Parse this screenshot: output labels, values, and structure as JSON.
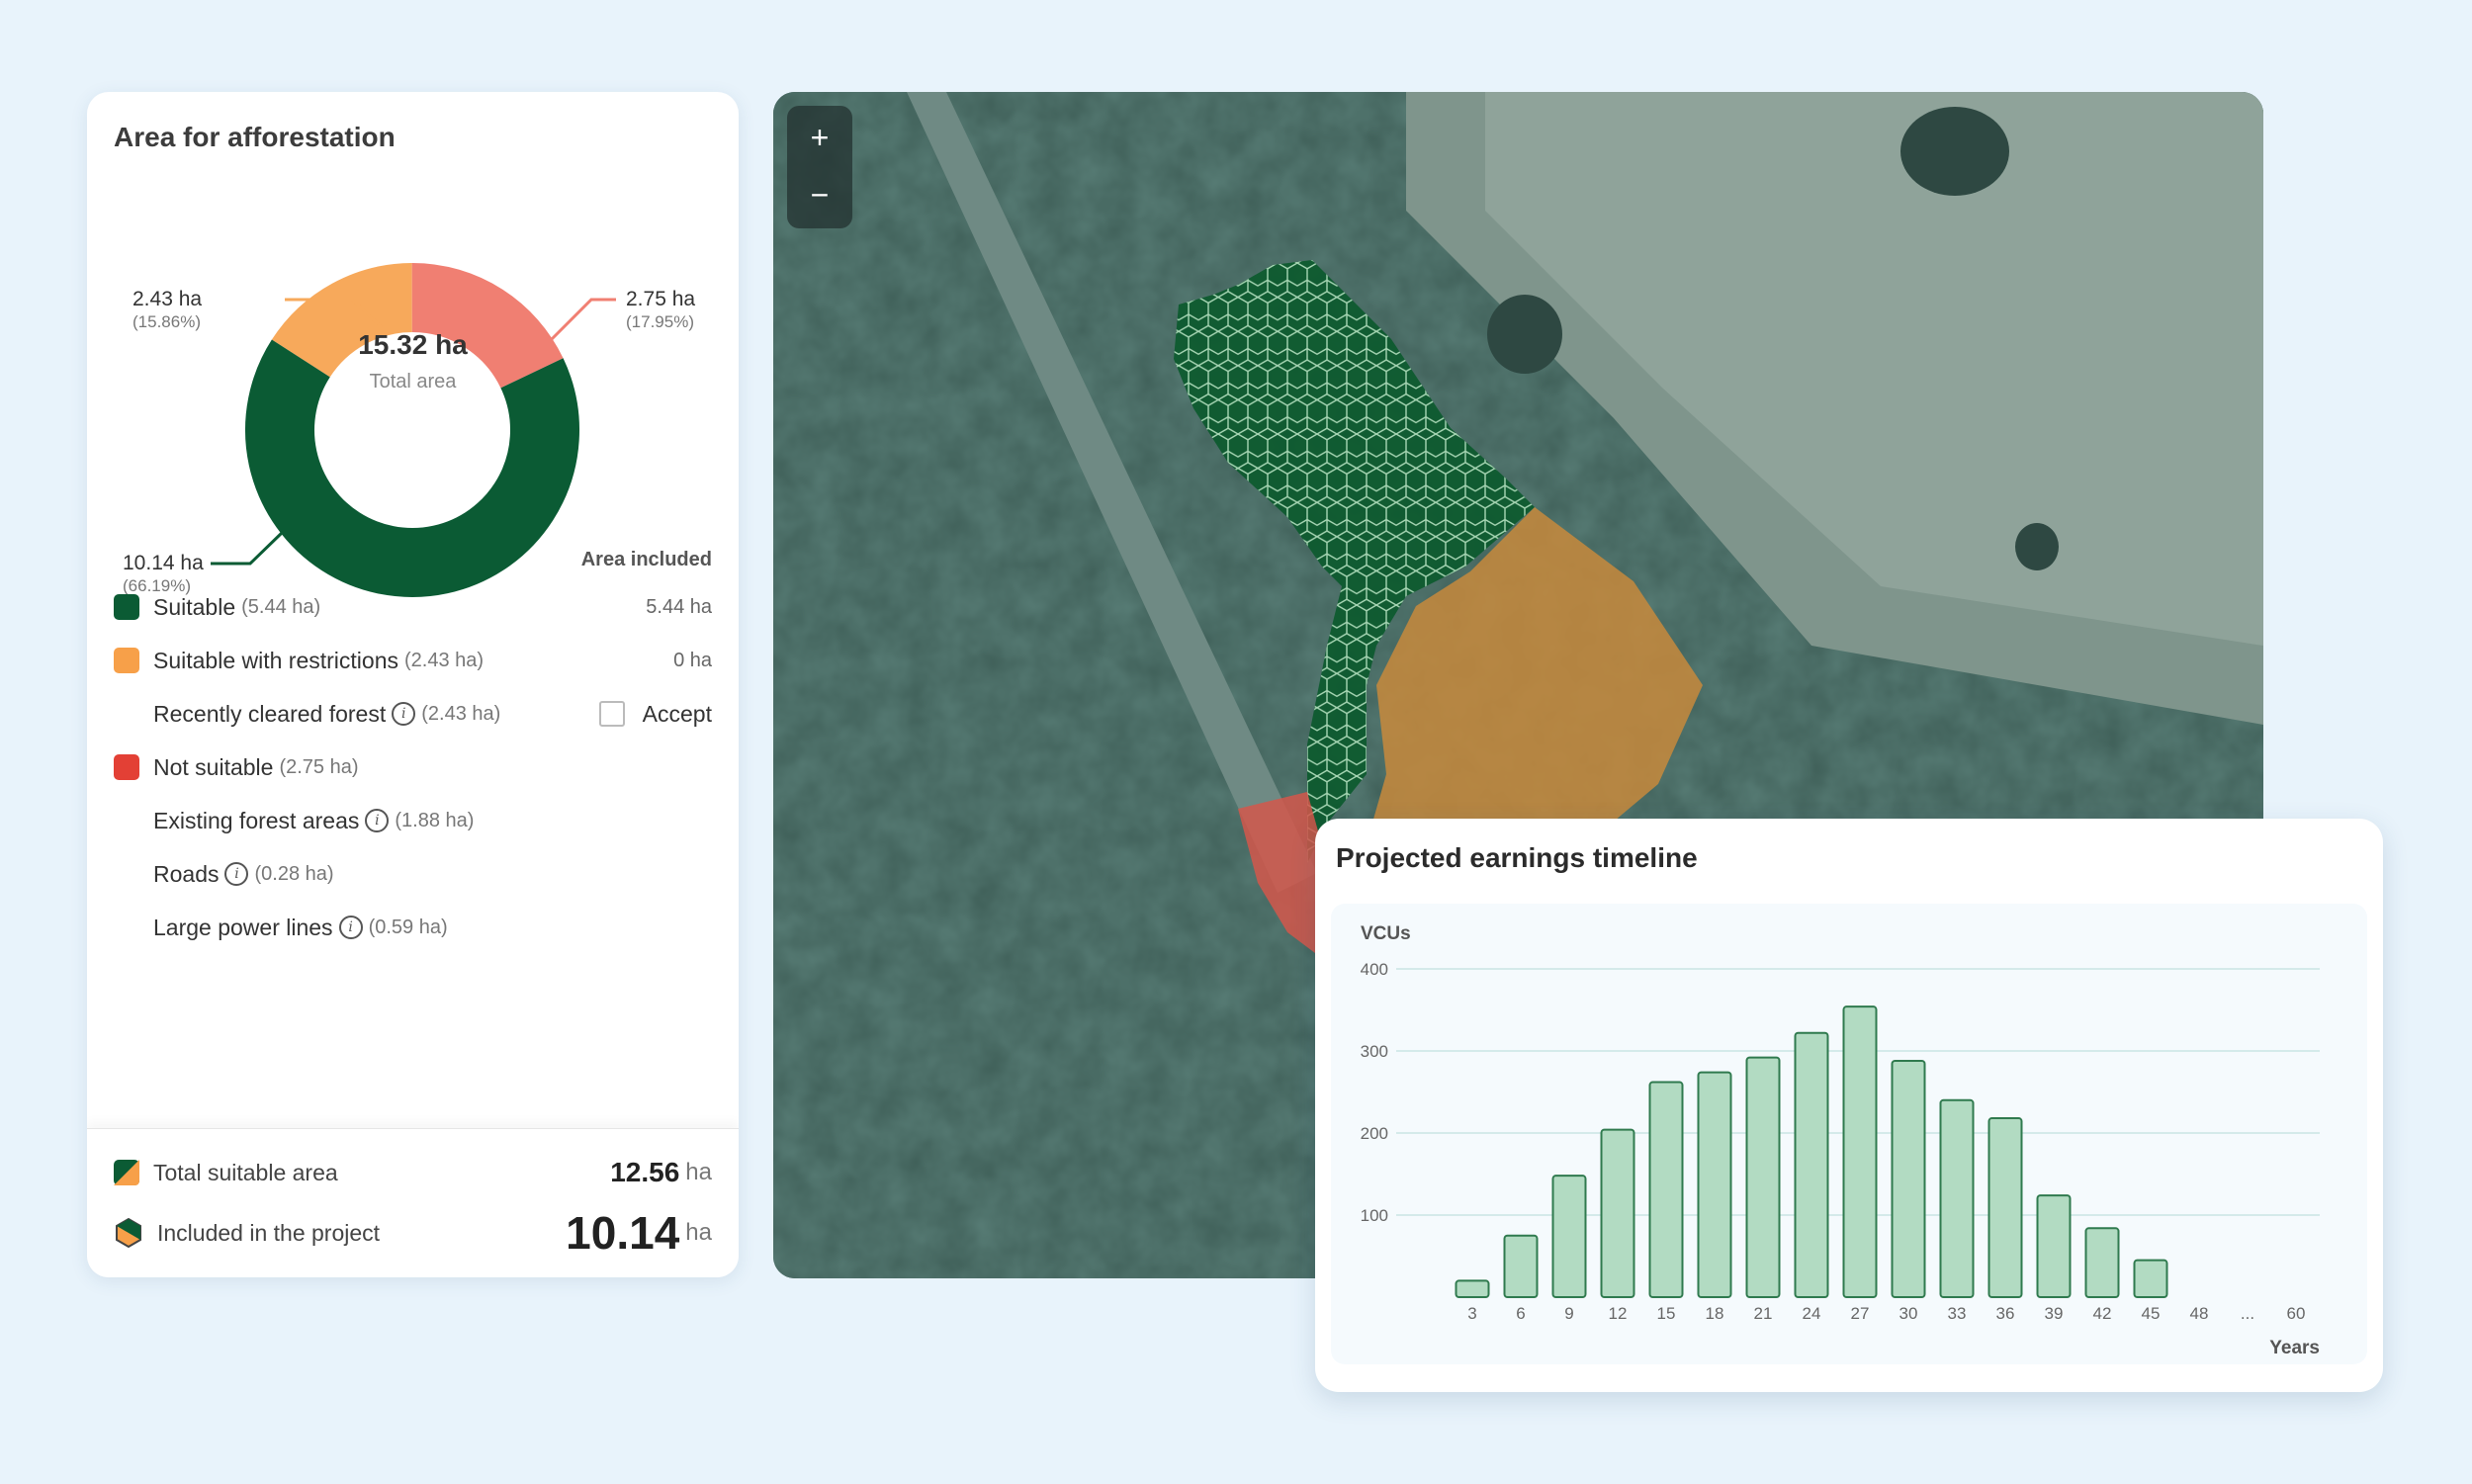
{
  "panel": {
    "title": "Area for afforestation",
    "donut": {
      "total_value": "15.32 ha",
      "total_label": "Total area",
      "callouts": [
        {
          "value": "2.43 ha",
          "pct": "(15.86%)"
        },
        {
          "value": "2.75 ha",
          "pct": "(17.95%)"
        },
        {
          "value": "10.14 ha",
          "pct": "(66.19%)"
        }
      ],
      "segments": [
        {
          "name": "Suitable with restrictions",
          "fraction": 0.1586,
          "color": "#f7a95b"
        },
        {
          "name": "Not suitable",
          "fraction": 0.1795,
          "color": "#f07f72"
        },
        {
          "name": "Suitable",
          "fraction": 0.6619,
          "color": "#0b5b34"
        }
      ]
    },
    "column_header": "Area included",
    "legend": {
      "suitable": {
        "label": "Suitable",
        "detail": "(5.44 ha)",
        "value": "5.44 ha",
        "color": "#0b5b34"
      },
      "restricted": {
        "label": "Suitable with restrictions",
        "detail": "(2.43 ha)",
        "value": "0 ha",
        "color": "#f7a049"
      },
      "cleared": {
        "label": "Recently cleared forest",
        "detail": "(2.43 ha)",
        "accept": "Accept"
      },
      "not_suitable": {
        "label": "Not suitable",
        "detail": "(2.75 ha)",
        "color": "#e34035"
      },
      "existing": {
        "label": "Existing forest areas",
        "detail": "(1.88 ha)"
      },
      "roads": {
        "label": "Roads",
        "detail": "(0.28 ha)"
      },
      "power": {
        "label": "Large power lines",
        "detail": "(0.59 ha)"
      }
    },
    "footer": {
      "total_label": "Total suitable area",
      "total_value": "12.56",
      "total_unit": "ha",
      "included_label": "Included in the project",
      "included_value": "10.14",
      "included_unit": "ha"
    }
  },
  "map": {
    "zoom_in": "+",
    "zoom_out": "−"
  },
  "chart_card": {
    "title": "Projected earnings timeline"
  },
  "chart_data": {
    "type": "bar",
    "title": "Projected earnings timeline",
    "ylabel": "VCUs",
    "xlabel": "Years",
    "ylim": [
      0,
      400
    ],
    "yticks": [
      100,
      200,
      300,
      400
    ],
    "categories": [
      "3",
      "6",
      "9",
      "12",
      "15",
      "18",
      "21",
      "24",
      "27",
      "30",
      "33",
      "36",
      "39",
      "42",
      "45",
      "48",
      "...",
      "60"
    ],
    "values": [
      20,
      75,
      148,
      204,
      262,
      274,
      292,
      322,
      354,
      288,
      240,
      218,
      124,
      84,
      45,
      null,
      null,
      null
    ],
    "grid": true,
    "bar_color": "#b2dbc2",
    "bar_stroke": "#2f7a4e"
  }
}
